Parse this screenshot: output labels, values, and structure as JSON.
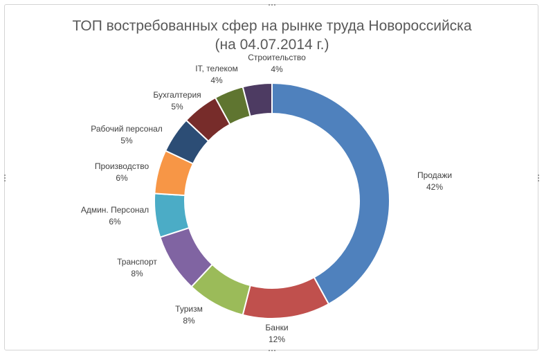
{
  "chart_data": {
    "type": "donut",
    "title": [
      "ТОП востребованных сфер на рынке труда Новороссийска",
      "(на 04.07.2014  г.)"
    ],
    "series": [
      {
        "name": "Продажи",
        "value": 42,
        "label": "42%",
        "color": "#4F81BD"
      },
      {
        "name": "Банки",
        "value": 12,
        "label": "12%",
        "color": "#C0504D"
      },
      {
        "name": "Туризм",
        "value": 8,
        "label": "8%",
        "color": "#9BBB59"
      },
      {
        "name": "Транспорт",
        "value": 8,
        "label": "8%",
        "color": "#8064A2"
      },
      {
        "name": "Админ. Персонал",
        "value": 6,
        "label": "6%",
        "color": "#4BACC6"
      },
      {
        "name": "Производство",
        "value": 6,
        "label": "6%",
        "color": "#F79646"
      },
      {
        "name": "Рабочий персонал",
        "value": 5,
        "label": "5%",
        "color": "#2C4D75"
      },
      {
        "name": "Бухгалтерия",
        "value": 5,
        "label": "5%",
        "color": "#772C2A"
      },
      {
        "name": "IT, телеком",
        "value": 4,
        "label": "4%",
        "color": "#5F7530"
      },
      {
        "name": "Строительство",
        "value": 4,
        "label": "4%",
        "color": "#4D3B62"
      }
    ]
  }
}
